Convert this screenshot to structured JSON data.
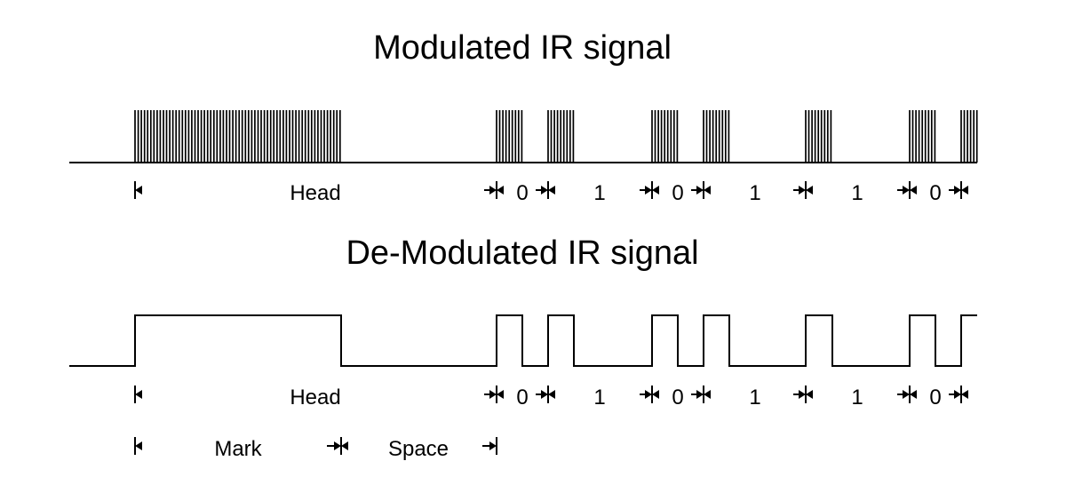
{
  "diagram": {
    "title_modulated": "Modulated IR signal",
    "title_demodulated": "De-Modulated IR signal",
    "label_head": "Head",
    "label_zero": "0",
    "label_one": "1",
    "label_mark": "Mark",
    "label_space": "Space",
    "sequence": [
      "Head",
      "0",
      "1",
      "0",
      "1",
      "1",
      "0"
    ],
    "ink_color": "#000000",
    "background_color": "#ffffff"
  }
}
